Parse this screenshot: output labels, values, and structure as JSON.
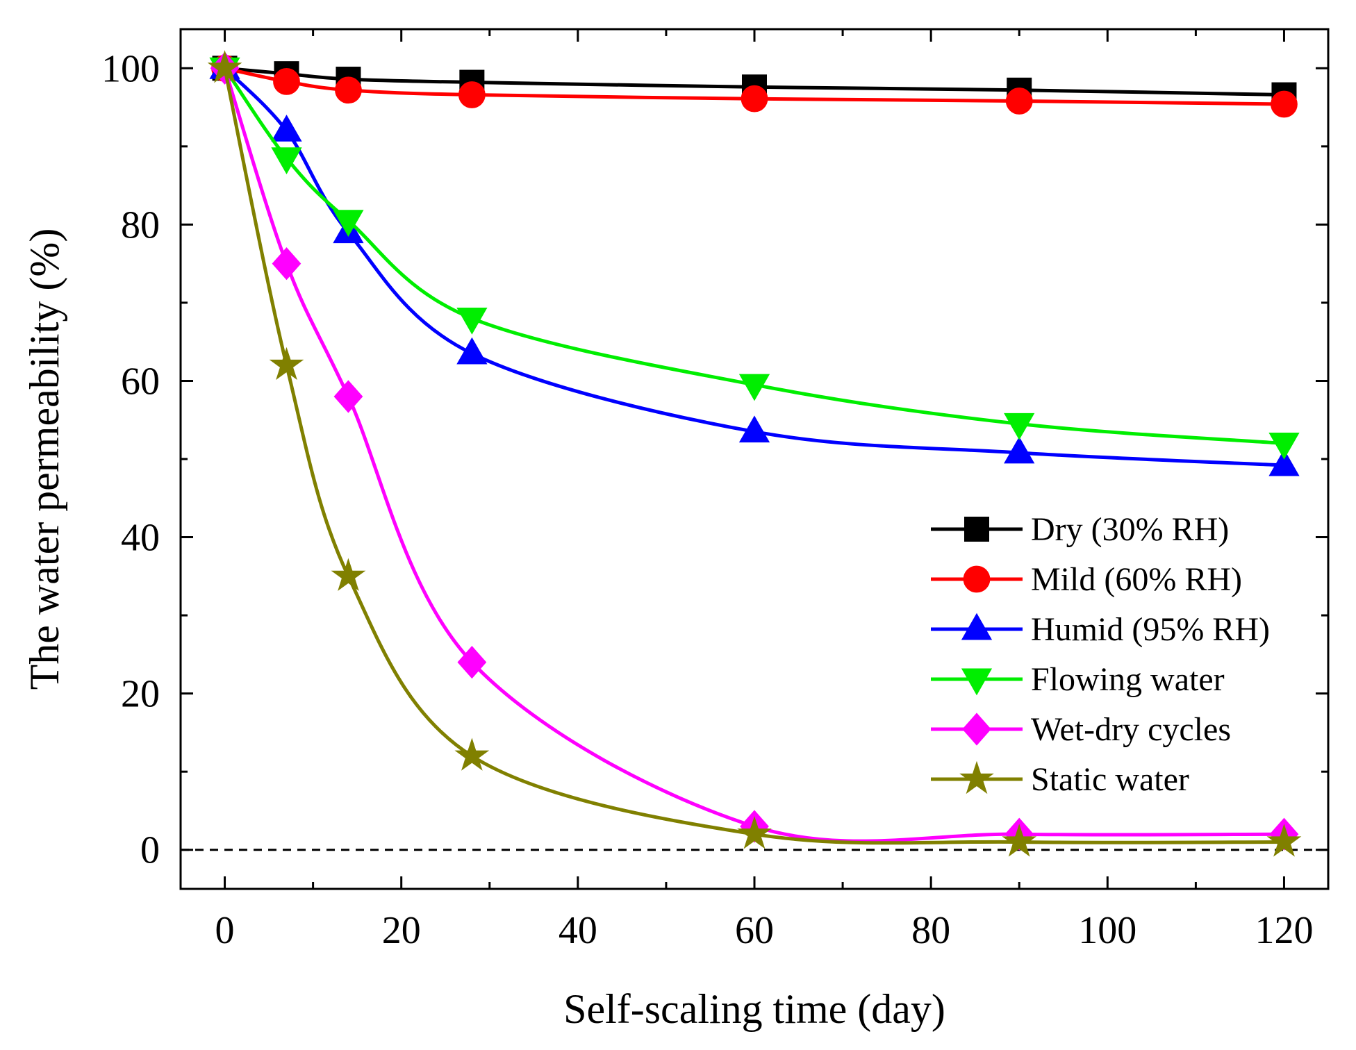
{
  "chart_data": {
    "type": "line",
    "title": "",
    "xlabel": "Self-scaling time (day)",
    "ylabel": "The water permeability (%)",
    "xlim": [
      -5,
      125
    ],
    "ylim": [
      -5,
      105
    ],
    "xticks": [
      0,
      20,
      40,
      60,
      80,
      100,
      120
    ],
    "xtick_labels": [
      "0",
      "20",
      "40",
      "60",
      "80",
      "100",
      "120"
    ],
    "yticks": [
      0,
      20,
      40,
      60,
      80,
      100
    ],
    "ytick_labels": [
      "0",
      "20",
      "40",
      "60",
      "80",
      "100"
    ],
    "reference_line": {
      "y": 0,
      "style": "dashed"
    },
    "grid": false,
    "legend_position": "right",
    "x": [
      0,
      7,
      14,
      28,
      60,
      90,
      120
    ],
    "series": [
      {
        "name": "Dry (30% RH)",
        "color": "#000000",
        "marker": "square",
        "values": [
          100,
          99.3,
          98.6,
          98.2,
          97.6,
          97.2,
          96.6
        ]
      },
      {
        "name": "Mild (60% RH)",
        "color": "#ff0000",
        "marker": "circle",
        "values": [
          100,
          98.3,
          97.2,
          96.6,
          96.1,
          95.8,
          95.4
        ]
      },
      {
        "name": "Humid (95% RH)",
        "color": "#0000ff",
        "marker": "triangle-up",
        "values": [
          100,
          92,
          79,
          63.5,
          53.5,
          50.8,
          49.2
        ]
      },
      {
        "name": "Flowing water",
        "color": "#00ee00",
        "marker": "triangle-down",
        "values": [
          100,
          88.5,
          80.5,
          68,
          59.5,
          54.5,
          52
        ]
      },
      {
        "name": "Wet-dry cycles",
        "color": "#ff00ff",
        "marker": "diamond",
        "values": [
          100,
          75,
          58,
          24,
          3,
          2,
          2
        ]
      },
      {
        "name": "Static water",
        "color": "#808000",
        "marker": "star",
        "values": [
          100,
          62,
          35,
          12,
          2,
          1,
          1
        ]
      }
    ]
  }
}
